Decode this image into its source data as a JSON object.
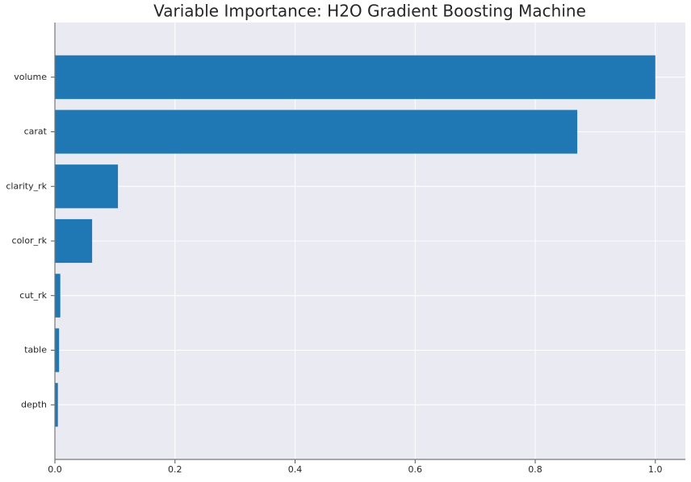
{
  "chart_data": {
    "type": "barh",
    "title": "Variable Importance: H2O Gradient Boosting Machine",
    "categories": [
      "volume",
      "carat",
      "clarity_rk",
      "color_rk",
      "cut_rk",
      "table",
      "depth"
    ],
    "values": [
      1.0,
      0.87,
      0.105,
      0.062,
      0.009,
      0.007,
      0.005
    ],
    "color": "#1f77b4",
    "xlim": [
      0,
      1.05
    ],
    "xticks": [
      {
        "value": 0,
        "label": "0.0"
      },
      0.2,
      0.4,
      0.6,
      0.8,
      {
        "value": 1,
        "label": "1.0"
      }
    ],
    "grid": true
  }
}
